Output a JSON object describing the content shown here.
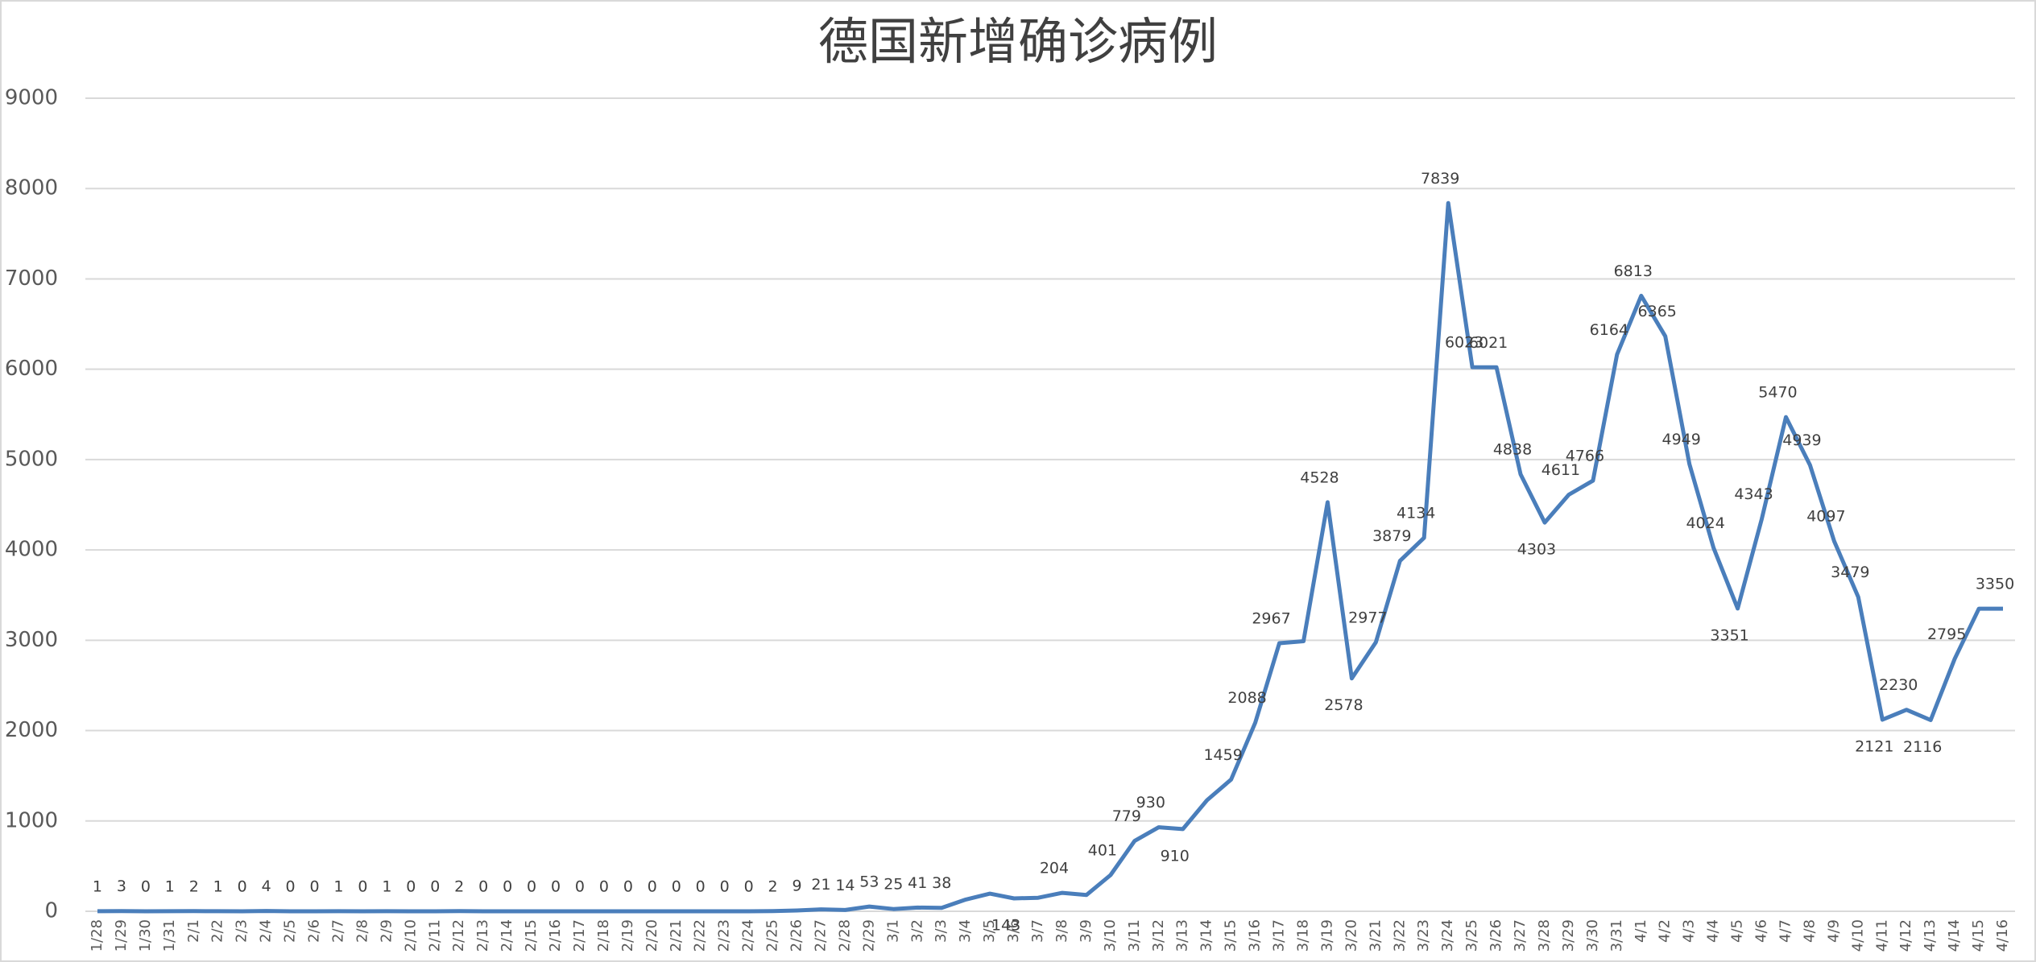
{
  "chart_data": {
    "type": "line",
    "title": "德国新增确诊病例",
    "categories": [
      "1/28",
      "1/29",
      "1/30",
      "1/31",
      "2/1",
      "2/2",
      "2/3",
      "2/4",
      "2/5",
      "2/6",
      "2/7",
      "2/8",
      "2/9",
      "2/10",
      "2/11",
      "2/12",
      "2/13",
      "2/14",
      "2/15",
      "2/16",
      "2/17",
      "2/18",
      "2/19",
      "2/20",
      "2/21",
      "2/22",
      "2/23",
      "2/24",
      "2/25",
      "2/26",
      "2/27",
      "2/28",
      "2/29",
      "3/1",
      "3/2",
      "3/3",
      "3/4",
      "3/5",
      "3/6",
      "3/7",
      "3/8",
      "3/9",
      "3/10",
      "3/11",
      "3/12",
      "3/13",
      "3/14",
      "3/15",
      "3/16",
      "3/17",
      "3/18",
      "3/19",
      "3/20",
      "3/21",
      "3/22",
      "3/23",
      "3/24",
      "3/25",
      "3/26",
      "3/27",
      "3/28",
      "3/29",
      "3/30",
      "3/31",
      "4/1",
      "4/2",
      "4/3",
      "4/4",
      "4/5",
      "4/6",
      "4/7",
      "4/8",
      "4/9",
      "4/10",
      "4/11",
      "4/12",
      "4/13",
      "4/14",
      "4/15",
      "4/16"
    ],
    "series": [
      {
        "color": "#4a7ebb",
        "values": [
          1,
          3,
          0,
          1,
          2,
          1,
          0,
          4,
          0,
          0,
          1,
          0,
          1,
          0,
          0,
          2,
          0,
          0,
          0,
          0,
          0,
          0,
          0,
          0,
          0,
          0,
          0,
          0,
          2,
          9,
          21,
          14,
          53,
          25,
          41,
          38,
          130,
          195,
          143,
          150,
          204,
          180,
          401,
          779,
          930,
          910,
          1230,
          1459,
          2088,
          2967,
          2990,
          4528,
          2578,
          2977,
          3879,
          4134,
          7839,
          6023,
          6021,
          4838,
          4303,
          4611,
          4766,
          6164,
          6813,
          6365,
          4949,
          4024,
          3351,
          4343,
          5470,
          4939,
          4097,
          3479,
          2121,
          2230,
          2116,
          2795,
          3350,
          3350
        ],
        "value_labels": [
          "1",
          "3",
          "0",
          "1",
          "2",
          "1",
          "0",
          "4",
          "0",
          "0",
          "1",
          "0",
          "1",
          "0",
          "0",
          "2",
          "0",
          "0",
          "0",
          "0",
          "0",
          "0",
          "0",
          "0",
          "0",
          "0",
          "0",
          "0",
          "2",
          "9",
          "21",
          "14",
          "53",
          "25",
          "41",
          "38",
          null,
          null,
          "143",
          null,
          "204",
          null,
          "401",
          "779",
          "930",
          "910",
          null,
          "1459",
          "2088",
          "2967",
          null,
          "4528",
          "2578",
          "2977",
          "3879",
          "4134",
          "7839",
          "6023",
          "6021",
          "4838",
          "4303",
          "4611",
          "4766",
          "6164",
          "6813",
          "6365",
          "4949",
          "4024",
          "3351",
          "4343",
          "5470",
          "4939",
          "4097",
          "3479",
          "2121",
          "2230",
          "2116",
          "2795",
          null,
          "3350"
        ]
      }
    ],
    "ylim": [
      0,
      9000
    ],
    "yticks": [
      0,
      1000,
      2000,
      3000,
      4000,
      5000,
      6000,
      7000,
      8000,
      9000
    ],
    "grid": true
  }
}
